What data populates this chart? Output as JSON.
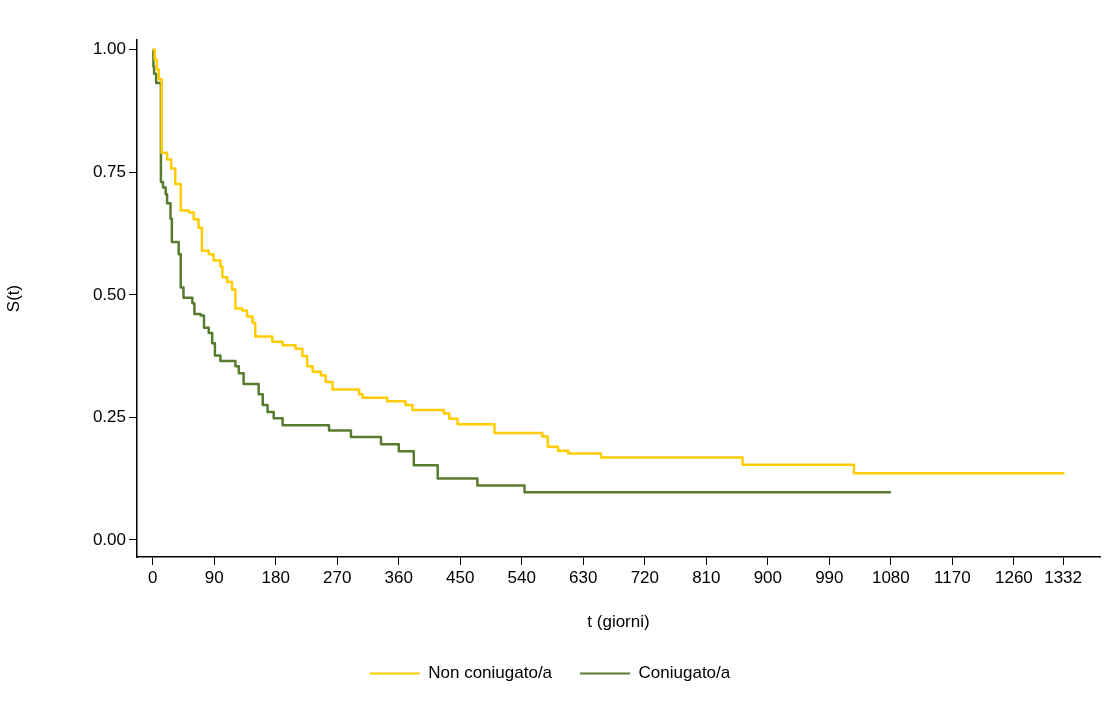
{
  "chart_data": {
    "type": "step",
    "xlabel": "t (giorni)",
    "ylabel": "S(t)",
    "xlim": [
      -23,
      1386
    ],
    "ylim": [
      -0.035,
      1.02
    ],
    "xticks": [
      0,
      90,
      180,
      270,
      360,
      450,
      540,
      630,
      720,
      810,
      900,
      990,
      1080,
      1170,
      1260,
      1332
    ],
    "yticks": [
      {
        "value": 0,
        "label": "0.00"
      },
      {
        "value": 0.25,
        "label": "0.25"
      },
      {
        "value": 0.5,
        "label": "0.50"
      },
      {
        "value": 0.75,
        "label": "0.75"
      },
      {
        "value": 1,
        "label": "1.00"
      }
    ],
    "grid": false,
    "legend": "bottom",
    "marker": "none",
    "line_style": "solid",
    "series": [
      {
        "name": "Non coniugato/a",
        "color": "#ffcc00",
        "x": [
          0,
          3,
          6,
          9,
          13,
          21,
          27,
          33,
          41,
          53,
          60,
          67,
          72,
          82,
          89,
          99,
          102,
          109,
          116,
          121,
          131,
          138,
          146,
          150,
          175,
          190,
          209,
          219,
          226,
          234,
          246,
          253,
          263,
          302,
          307,
          343,
          370,
          380,
          426,
          434,
          446,
          500,
          570,
          578,
          593,
          608,
          656,
          863,
          1026,
          1334
        ],
        "values": [
          1,
          0.98,
          0.96,
          0.94,
          0.79,
          0.776,
          0.758,
          0.726,
          0.672,
          0.668,
          0.654,
          0.637,
          0.59,
          0.583,
          0.57,
          0.558,
          0.536,
          0.526,
          0.511,
          0.472,
          0.468,
          0.456,
          0.443,
          0.415,
          0.404,
          0.397,
          0.39,
          0.375,
          0.354,
          0.343,
          0.336,
          0.322,
          0.307,
          0.297,
          0.29,
          0.283,
          0.275,
          0.265,
          0.258,
          0.247,
          0.236,
          0.218,
          0.211,
          0.19,
          0.182,
          0.176,
          0.168,
          0.153,
          0.136,
          0.136
        ]
      },
      {
        "name": "Coniugato/a",
        "color": "#587c2f",
        "x": [
          0,
          1,
          2,
          5,
          12,
          15,
          19,
          21,
          26,
          28,
          38,
          41,
          45,
          58,
          61,
          70,
          75,
          82,
          87,
          91,
          99,
          121,
          126,
          133,
          155,
          161,
          168,
          177,
          190,
          258,
          290,
          334,
          360,
          382,
          417,
          475,
          544,
          1080
        ],
        "values": [
          1,
          0.966,
          0.951,
          0.932,
          0.73,
          0.719,
          0.705,
          0.687,
          0.655,
          0.608,
          0.583,
          0.515,
          0.494,
          0.483,
          0.461,
          0.458,
          0.433,
          0.422,
          0.401,
          0.376,
          0.365,
          0.354,
          0.34,
          0.318,
          0.297,
          0.275,
          0.261,
          0.248,
          0.234,
          0.223,
          0.21,
          0.195,
          0.181,
          0.152,
          0.125,
          0.111,
          0.097,
          0.097
        ]
      }
    ]
  }
}
